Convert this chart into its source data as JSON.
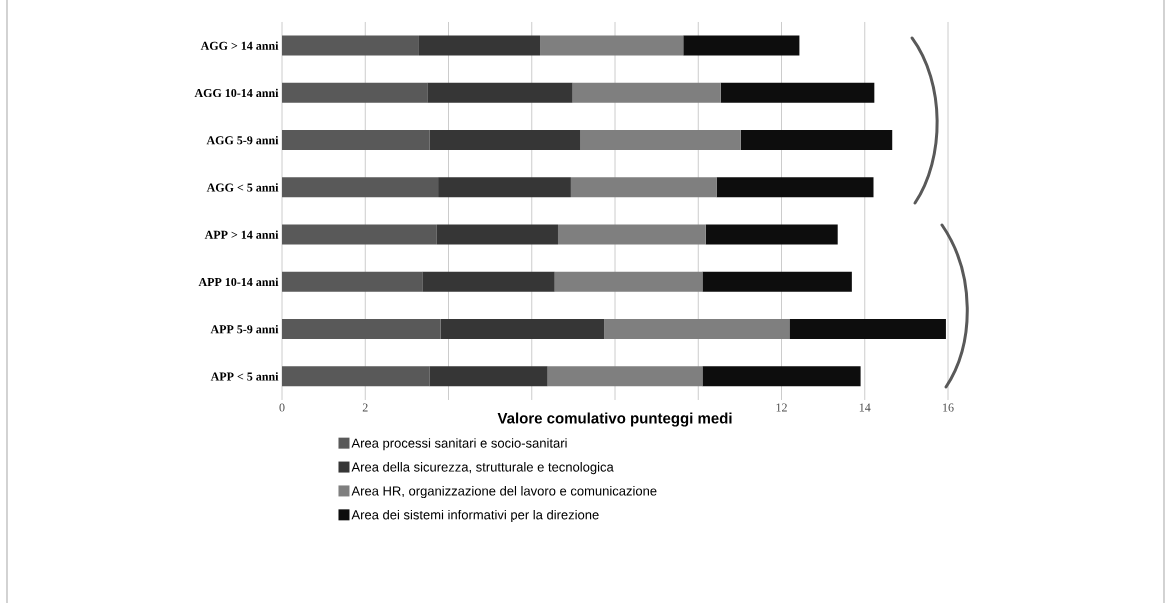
{
  "chart_data": {
    "type": "bar",
    "orientation": "horizontal",
    "stacked": true,
    "xlabel": "Valore comulativo punteggi medi",
    "categories": [
      "AGG > 14 anni",
      "AGG 10-14 anni",
      "AGG 5-9 anni",
      "AGG < 5 anni",
      "APP > 14 anni",
      "APP 10-14 anni",
      "APP 5-9 anni",
      "APP < 5 anni"
    ],
    "series": [
      {
        "name": "Area processi sanitari e socio-sanitari",
        "color": "#595959",
        "values": [
          3.29,
          3.49,
          3.55,
          3.75,
          3.72,
          3.37,
          3.81,
          3.54
        ]
      },
      {
        "name": "Area della sicurezza, strutturale e tecnologica",
        "color": "#363636",
        "values": [
          2.91,
          3.49,
          3.62,
          3.19,
          2.91,
          3.18,
          3.93,
          2.84
        ]
      },
      {
        "name": "Area HR, organizzazione del lavoro e comunicazione",
        "color": "#7f7f7f",
        "values": [
          3.44,
          3.56,
          3.85,
          3.5,
          3.55,
          3.55,
          4.45,
          3.72
        ]
      },
      {
        "name": "Area dei sistemi informativi per la direzione",
        "color": "#0d0d0d",
        "values": [
          2.79,
          3.69,
          3.64,
          3.77,
          3.17,
          3.59,
          3.76,
          3.8
        ]
      }
    ],
    "xlim": [
      0,
      16
    ],
    "xticks": [
      0,
      2,
      {
        "value": 4,
        "label": null
      },
      {
        "value": 6,
        "label": null
      },
      {
        "value": 8,
        "label": null
      },
      {
        "value": 10,
        "label": null
      },
      12,
      14,
      16
    ],
    "grid": "x",
    "legend": "bottom"
  }
}
